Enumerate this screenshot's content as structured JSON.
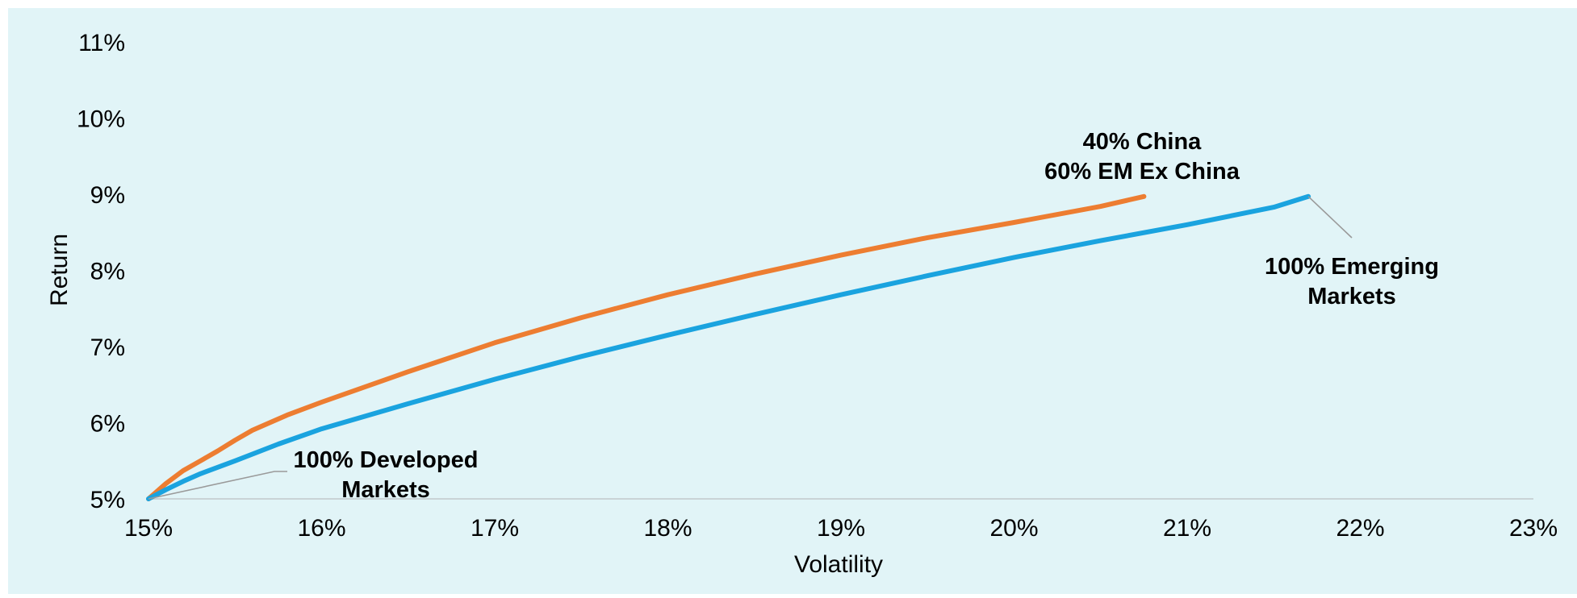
{
  "chart_data": {
    "type": "line",
    "title": "",
    "xlabel": "Volatility",
    "ylabel": "Return",
    "xlim": [
      15,
      23
    ],
    "ylim": [
      5,
      11
    ],
    "x_ticks": [
      15,
      16,
      17,
      18,
      19,
      20,
      21,
      22,
      23
    ],
    "y_ticks": [
      5,
      6,
      7,
      8,
      9,
      10,
      11
    ],
    "x_tick_labels": [
      "15%",
      "16%",
      "17%",
      "18%",
      "19%",
      "20%",
      "21%",
      "22%",
      "23%"
    ],
    "y_tick_labels": [
      "5%",
      "6%",
      "7%",
      "8%",
      "9%",
      "10%",
      "11%"
    ],
    "grid": false,
    "legend": "none",
    "series": [
      {
        "color": "#ed7d31",
        "points": [
          [
            15.0,
            5.0
          ],
          [
            15.1,
            5.2
          ],
          [
            15.2,
            5.37
          ],
          [
            15.3,
            5.5
          ],
          [
            15.4,
            5.63
          ],
          [
            15.5,
            5.77
          ],
          [
            15.6,
            5.9
          ],
          [
            15.8,
            6.1
          ],
          [
            16.0,
            6.27
          ],
          [
            16.5,
            6.67
          ],
          [
            17.0,
            7.05
          ],
          [
            17.5,
            7.38
          ],
          [
            18.0,
            7.68
          ],
          [
            18.5,
            7.95
          ],
          [
            19.0,
            8.2
          ],
          [
            19.5,
            8.43
          ],
          [
            20.0,
            8.63
          ],
          [
            20.5,
            8.84
          ],
          [
            20.75,
            8.97
          ]
        ]
      },
      {
        "color": "#1aa3df",
        "points": [
          [
            15.0,
            5.0
          ],
          [
            15.1,
            5.12
          ],
          [
            15.2,
            5.23
          ],
          [
            15.3,
            5.33
          ],
          [
            15.5,
            5.5
          ],
          [
            15.75,
            5.72
          ],
          [
            16.0,
            5.92
          ],
          [
            16.5,
            6.25
          ],
          [
            17.0,
            6.57
          ],
          [
            17.5,
            6.87
          ],
          [
            18.0,
            7.15
          ],
          [
            18.5,
            7.42
          ],
          [
            19.0,
            7.68
          ],
          [
            19.5,
            7.93
          ],
          [
            20.0,
            8.17
          ],
          [
            20.5,
            8.39
          ],
          [
            21.0,
            8.6
          ],
          [
            21.5,
            8.83
          ],
          [
            21.7,
            8.97
          ]
        ]
      }
    ],
    "annotations": [
      {
        "lines": [
          "40% China",
          "60% EM Ex China"
        ],
        "x": 20.75,
        "y": 8.97
      },
      {
        "lines": [
          "100% Emerging",
          "Markets"
        ],
        "x": 21.7,
        "y": 8.97
      },
      {
        "lines": [
          "100% Developed",
          "Markets"
        ],
        "x": 15.0,
        "y": 5.0
      }
    ]
  }
}
